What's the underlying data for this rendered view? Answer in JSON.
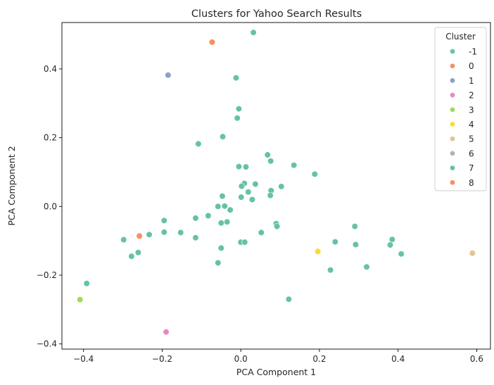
{
  "chart_data": {
    "type": "scatter",
    "title": "Clusters for Yahoo Search Results",
    "xlabel": "PCA Component 1",
    "ylabel": "PCA Component 2",
    "xlim": [
      -0.455,
      0.635
    ],
    "ylim": [
      -0.415,
      0.535
    ],
    "xticks": [
      -0.4,
      -0.2,
      0.0,
      0.2,
      0.4,
      0.6
    ],
    "xtick_labels": [
      "−0.4",
      "−0.2",
      "0.0",
      "0.2",
      "0.4",
      "0.6"
    ],
    "yticks": [
      -0.4,
      -0.2,
      0.0,
      0.2,
      0.4
    ],
    "ytick_labels": [
      "−0.4",
      "−0.2",
      "0.0",
      "0.2",
      "0.4"
    ],
    "grid": false,
    "legend": {
      "title": "Cluster",
      "placement": "top-right"
    },
    "series": [
      {
        "name": "-1",
        "color": "#66c2a5",
        "points": [
          [
            0.032,
            0.506
          ],
          [
            -0.012,
            0.374
          ],
          [
            -0.005,
            0.284
          ],
          [
            -0.009,
            0.257
          ],
          [
            -0.046,
            0.203
          ],
          [
            -0.108,
            0.182
          ],
          [
            0.068,
            0.15
          ],
          [
            0.076,
            0.132
          ],
          [
            0.135,
            0.12
          ],
          [
            0.013,
            0.115
          ],
          [
            -0.005,
            0.116
          ],
          [
            0.188,
            0.094
          ],
          [
            0.037,
            0.065
          ],
          [
            0.009,
            0.067
          ],
          [
            0.002,
            0.059
          ],
          [
            0.103,
            0.058
          ],
          [
            0.077,
            0.046
          ],
          [
            0.019,
            0.042
          ],
          [
            0.075,
            0.032
          ],
          [
            -0.047,
            0.03
          ],
          [
            0.001,
            0.027
          ],
          [
            0.029,
            0.02
          ],
          [
            -0.058,
            0.0
          ],
          [
            -0.041,
            0.001
          ],
          [
            -0.027,
            -0.01
          ],
          [
            -0.083,
            -0.027
          ],
          [
            -0.115,
            -0.034
          ],
          [
            -0.195,
            -0.041
          ],
          [
            -0.05,
            -0.048
          ],
          [
            -0.035,
            -0.045
          ],
          [
            0.09,
            -0.05
          ],
          [
            0.092,
            -0.058
          ],
          [
            -0.195,
            -0.075
          ],
          [
            -0.153,
            -0.076
          ],
          [
            0.052,
            -0.076
          ],
          [
            -0.233,
            -0.082
          ],
          [
            -0.115,
            -0.091
          ],
          [
            -0.297,
            -0.096
          ],
          [
            -0.298,
            -0.097
          ],
          [
            0.0,
            -0.104
          ],
          [
            0.01,
            -0.104
          ],
          [
            0.24,
            -0.103
          ],
          [
            0.29,
            -0.058
          ],
          [
            0.385,
            -0.096
          ],
          [
            0.38,
            -0.112
          ],
          [
            0.292,
            -0.111
          ],
          [
            -0.05,
            -0.121
          ],
          [
            -0.261,
            -0.134
          ],
          [
            -0.278,
            -0.145
          ],
          [
            0.408,
            -0.138
          ],
          [
            -0.058,
            -0.164
          ],
          [
            0.32,
            -0.176
          ],
          [
            0.228,
            -0.185
          ],
          [
            -0.392,
            -0.224
          ],
          [
            0.122,
            -0.27
          ]
        ]
      },
      {
        "name": "0",
        "color": "#fc8d62",
        "points": [
          [
            -0.073,
            0.478
          ]
        ]
      },
      {
        "name": "1",
        "color": "#8da0cb",
        "points": [
          [
            -0.185,
            0.382
          ]
        ]
      },
      {
        "name": "2",
        "color": "#e78ac3",
        "points": [
          [
            -0.19,
            -0.365
          ]
        ]
      },
      {
        "name": "3",
        "color": "#a6d854",
        "points": [
          [
            -0.409,
            -0.271
          ]
        ]
      },
      {
        "name": "4",
        "color": "#ffd92f",
        "points": [
          [
            0.196,
            -0.131
          ]
        ]
      },
      {
        "name": "5",
        "color": "#e5c494",
        "points": [
          [
            0.589,
            -0.136
          ]
        ]
      },
      {
        "name": "6",
        "color": "#b3b3b3",
        "points": []
      },
      {
        "name": "7",
        "color": "#66c2a5",
        "points": []
      },
      {
        "name": "8",
        "color": "#fc8d62",
        "points": [
          [
            -0.258,
            -0.086
          ]
        ]
      }
    ]
  }
}
